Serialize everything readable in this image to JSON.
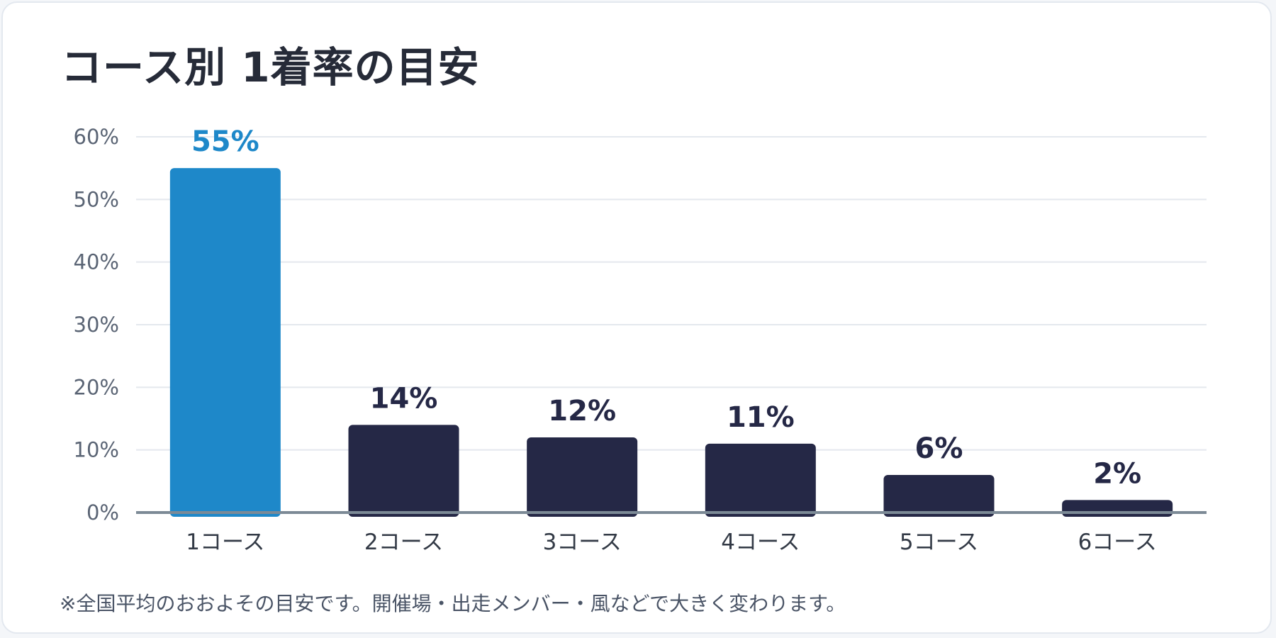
{
  "title": "コース別 1着率の目安",
  "note": "※全国平均のおおよその目安です。開催場・出走メンバー・風などで大きく変わります。",
  "colors": {
    "highlight": "#1e88c9",
    "bar": "#252846",
    "grid": "#e4e8ee",
    "axis": "#7c8a96",
    "tick_text": "#5a6474",
    "category_text": "#333a46",
    "highlight_label": "#1e88c9",
    "value_label": "#252846"
  },
  "chart_data": {
    "type": "bar",
    "categories": [
      "1コース",
      "2コース",
      "3コース",
      "4コース",
      "5コース",
      "6コース"
    ],
    "values": [
      55,
      14,
      12,
      11,
      6,
      2
    ],
    "value_labels": [
      "55%",
      "14%",
      "12%",
      "11%",
      "6%",
      "2%"
    ],
    "highlight_index": 0,
    "ylim": [
      0,
      60
    ],
    "yticks": [
      0,
      10,
      20,
      30,
      40,
      50,
      60
    ],
    "ytick_labels": [
      "0%",
      "10%",
      "20%",
      "30%",
      "40%",
      "50%",
      "60%"
    ],
    "grid": true,
    "legend": "none"
  }
}
